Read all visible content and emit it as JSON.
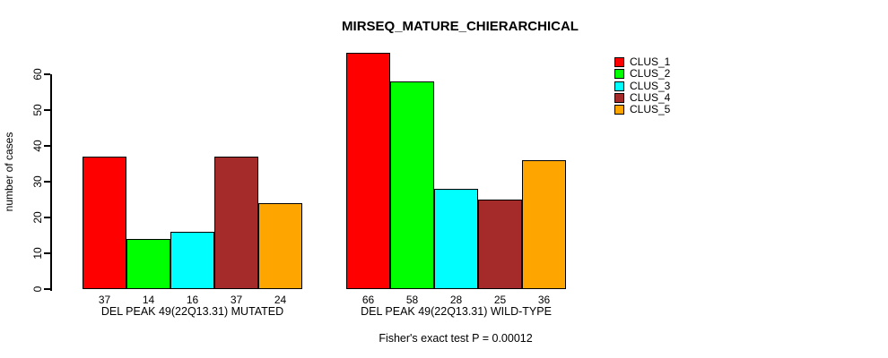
{
  "chart_data": {
    "type": "bar",
    "title": "MIRSEQ_MATURE_CHIERARCHICAL",
    "ylabel": "number of cases",
    "xlabel": "",
    "caption": "Fisher's exact test P = 0.00012",
    "yticks": [
      0,
      10,
      20,
      30,
      40,
      50,
      60
    ],
    "ylim": [
      0,
      66
    ],
    "grid": false,
    "legend_position": "right",
    "series": [
      {
        "name": "CLUS_1",
        "color": "#ff0000"
      },
      {
        "name": "CLUS_2",
        "color": "#00ff00"
      },
      {
        "name": "CLUS_3",
        "color": "#00ffff"
      },
      {
        "name": "CLUS_4",
        "color": "#a52a2a"
      },
      {
        "name": "CLUS_5",
        "color": "#ffa500"
      }
    ],
    "groups": [
      {
        "label": "DEL PEAK 49(22Q13.31) MUTATED",
        "values": [
          37,
          14,
          16,
          37,
          24
        ]
      },
      {
        "label": "DEL PEAK 49(22Q13.31) WILD-TYPE",
        "values": [
          66,
          58,
          28,
          25,
          36
        ]
      }
    ]
  }
}
